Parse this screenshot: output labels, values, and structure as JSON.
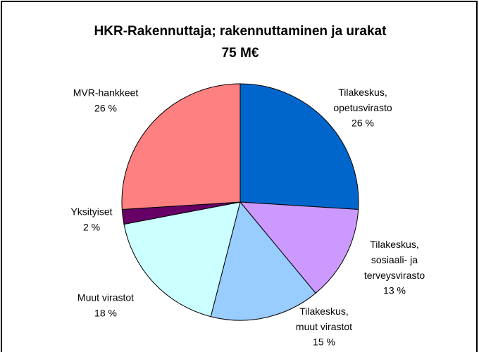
{
  "chart_data": {
    "type": "pie",
    "title": "HKR-Rakennuttaja; rakennuttaminen ja urakat",
    "subtitle": "75 M€",
    "categories": [
      "Tilakeskus,\nopetusvirasto",
      "Tilakeskus,\nsosiaali- ja\nterveysvirasto",
      "Tilakeskus,\nmuut virastot",
      "Muut virastot",
      "Yksityiset",
      "MVR-hankkeet"
    ],
    "values": [
      26,
      13,
      15,
      18,
      2,
      26
    ],
    "value_labels": [
      "26 %",
      "13 %",
      "15 %",
      "18 %",
      "2 %",
      "26 %"
    ],
    "colors": [
      "#0066cc",
      "#cc99ff",
      "#99ccff",
      "#ccffff",
      "#660066",
      "#ff8080"
    ]
  }
}
